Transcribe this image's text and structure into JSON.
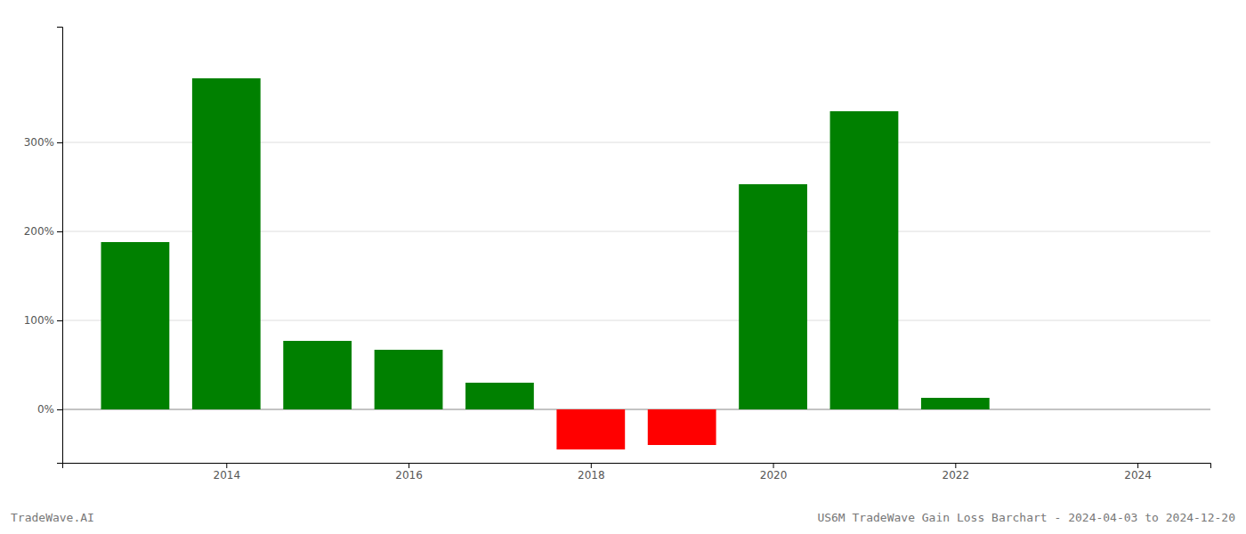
{
  "chart_data": {
    "type": "bar",
    "title": "US6M TradeWave Gain Loss Barchart - 2024-04-03 to 2024-12-20",
    "annotations": [
      "TradeWave.AI"
    ],
    "x": [
      2013,
      2014,
      2015,
      2016,
      2017,
      2018,
      2019,
      2020,
      2021,
      2022,
      2023
    ],
    "values": [
      1.88,
      3.72,
      0.77,
      0.67,
      0.3,
      -0.45,
      -0.4,
      2.53,
      3.35,
      0.13,
      0.0
    ],
    "colors": [
      "#008000",
      "#008000",
      "#008000",
      "#008000",
      "#008000",
      "#FF0000",
      "#FF0000",
      "#008000",
      "#008000",
      "#008000",
      "#008000"
    ],
    "xlim": [
      2012.2,
      2024.8
    ],
    "ylim": [
      -0.6,
      4.3
    ],
    "xticks": [
      2014,
      2016,
      2018,
      2020,
      2022,
      2024
    ],
    "yticks": [
      {
        "value": 0.0,
        "label": "0%"
      },
      {
        "value": 1.0,
        "label": "100%"
      },
      {
        "value": 2.0,
        "label": "200%"
      },
      {
        "value": 3.0,
        "label": "300%"
      }
    ],
    "grid": true
  }
}
